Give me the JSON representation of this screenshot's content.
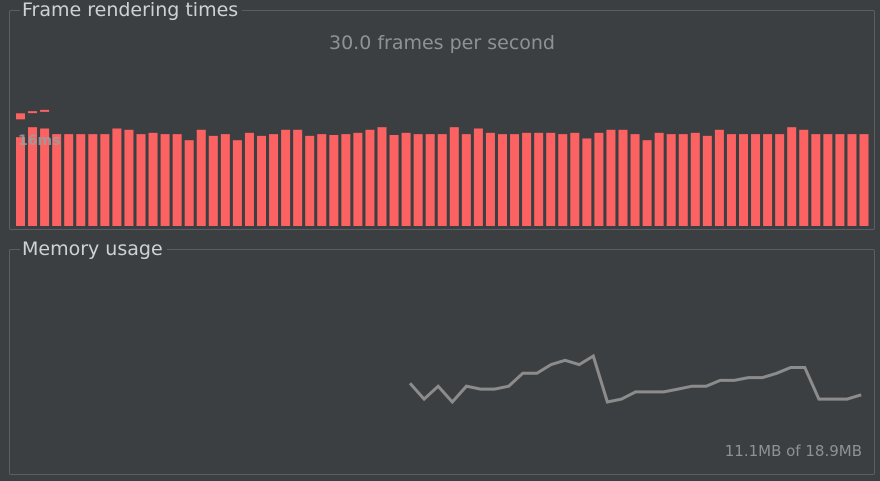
{
  "frame_panel": {
    "title": "Frame rendering times",
    "fps_text": "30.0 frames per second",
    "threshold_label": "16ms"
  },
  "memory_panel": {
    "title": "Memory usage",
    "usage_text": "11.1MB of 18.9MB"
  },
  "colors": {
    "background": "#3c3f41",
    "bar": "#fd6262",
    "memory_line": "#8c8c8c"
  },
  "chart_data": [
    {
      "type": "bar",
      "ylabel": "",
      "threshold_ms": 16,
      "ylim": [
        0,
        30
      ],
      "values": [
        20.5,
        22.8,
        22.5,
        21.2,
        21.2,
        21.2,
        21.2,
        21.2,
        22.5,
        22.2,
        21.2,
        21.5,
        21.2,
        21.2,
        19.8,
        22.2,
        20.8,
        21.2,
        19.8,
        21.5,
        20.8,
        21.2,
        22.2,
        22.2,
        20.8,
        21.2,
        21.0,
        21.2,
        21.5,
        22.2,
        22.8,
        21.0,
        21.5,
        21.2,
        21.2,
        21.2,
        22.8,
        21.2,
        22.5,
        21.5,
        21.2,
        21.2,
        21.5,
        21.5,
        21.5,
        21.2,
        21.5,
        20.2,
        21.5,
        22.2,
        22.2,
        21.2,
        19.8,
        21.5,
        21.2,
        21.2,
        21.5,
        20.8,
        22.2,
        21.2,
        21.2,
        21.2,
        21.2,
        21.2,
        22.8,
        22.2,
        21.2,
        21.2,
        21.2,
        21.2,
        21.2
      ],
      "outliers": [
        {
          "index": 0,
          "value": 26.0
        },
        {
          "index": 1,
          "value": 26.5
        },
        {
          "index": 2,
          "value": 26.8
        }
      ]
    },
    {
      "type": "line",
      "unit": "MB",
      "used_mb": 11.1,
      "total_mb": 18.9,
      "values": [
        12.2,
        11.1,
        12.0,
        10.9,
        12.0,
        11.8,
        11.8,
        12.0,
        12.9,
        12.9,
        13.5,
        13.8,
        13.5,
        14.1,
        10.9,
        11.1,
        11.6,
        11.6,
        11.6,
        11.8,
        12.0,
        12.0,
        12.4,
        12.4,
        12.6,
        12.6,
        12.9,
        13.3,
        13.3,
        11.1,
        11.1,
        11.1,
        11.4
      ]
    }
  ]
}
